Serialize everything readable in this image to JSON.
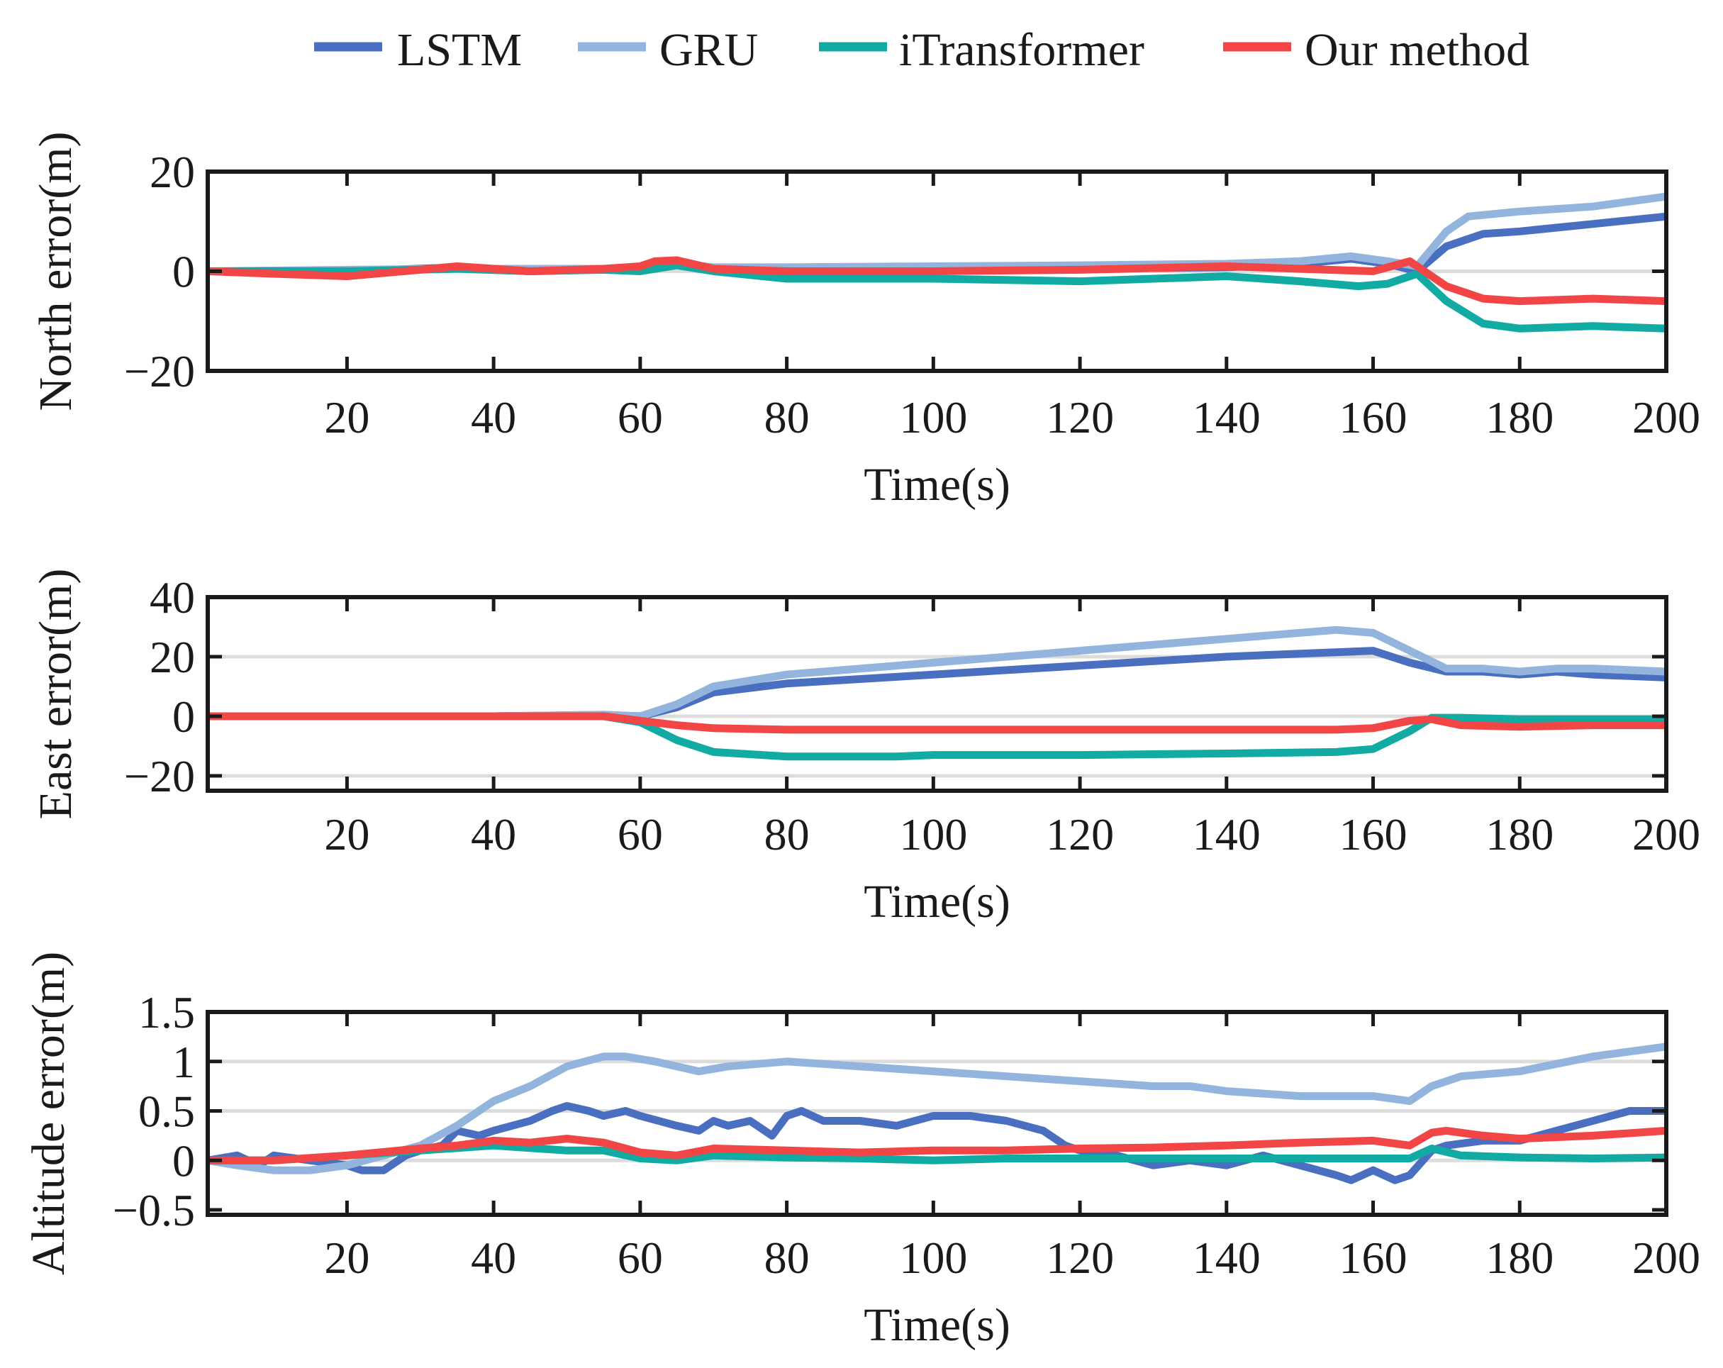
{
  "legend": [
    {
      "name": "LSTM",
      "color": "#4a6fc0"
    },
    {
      "name": "GRU",
      "color": "#93b5dd"
    },
    {
      "name": "iTransformer",
      "color": "#12aba4"
    },
    {
      "name": "Our method",
      "color": "#f24545"
    }
  ],
  "chart_data": [
    {
      "type": "line",
      "title": "",
      "xlabel": "Time(s)",
      "ylabel": "North error(m)",
      "xlim": [
        1,
        200
      ],
      "ylim": [
        -20,
        20
      ],
      "xticks": [
        20,
        40,
        60,
        80,
        100,
        120,
        140,
        160,
        180,
        200
      ],
      "yticks": [
        -20,
        0,
        20
      ],
      "ytick_labels": [
        "−20",
        "0",
        "20"
      ],
      "gridlines": [
        0
      ],
      "series": [
        {
          "name": "LSTM",
          "color": "#4a6fc0",
          "x": [
            1,
            20,
            35,
            45,
            52,
            58,
            64,
            70,
            80,
            100,
            120,
            140,
            150,
            157,
            162,
            166,
            170,
            175,
            180,
            190,
            200
          ],
          "y": [
            0,
            0,
            0.8,
            0,
            0.5,
            0.5,
            1.5,
            0.5,
            0,
            0.3,
            0.5,
            0.8,
            1.5,
            2.5,
            1.5,
            0,
            5,
            7.5,
            8,
            9.5,
            11
          ]
        },
        {
          "name": "GRU",
          "color": "#93b5dd",
          "x": [
            1,
            20,
            35,
            45,
            60,
            65,
            70,
            80,
            100,
            120,
            140,
            150,
            157,
            162,
            166,
            170,
            173,
            180,
            190,
            200
          ],
          "y": [
            0,
            0.3,
            0.5,
            0.5,
            0.5,
            1.5,
            0.8,
            0.8,
            1,
            1.2,
            1.5,
            2,
            3,
            2,
            1,
            8,
            11,
            12,
            13,
            15
          ]
        },
        {
          "name": "iTransformer",
          "color": "#12aba4",
          "x": [
            1,
            20,
            35,
            45,
            55,
            60,
            65,
            70,
            80,
            100,
            120,
            140,
            150,
            158,
            162,
            166,
            170,
            175,
            180,
            190,
            200
          ],
          "y": [
            0,
            0,
            0.5,
            0,
            0.3,
            0,
            1.2,
            0,
            -1.5,
            -1.5,
            -2,
            -1,
            -2,
            -3,
            -2.5,
            -0.5,
            -6,
            -10.5,
            -11.5,
            -11,
            -11.5
          ]
        },
        {
          "name": "Our method",
          "color": "#f24545",
          "x": [
            1,
            10,
            20,
            30,
            35,
            45,
            55,
            60,
            62,
            65,
            70,
            80,
            100,
            120,
            140,
            150,
            160,
            165,
            170,
            175,
            180,
            190,
            200
          ],
          "y": [
            0,
            -0.5,
            -1,
            0.3,
            1,
            0,
            0.5,
            1,
            2,
            2.2,
            0.5,
            0,
            0,
            0.3,
            1,
            0.5,
            0,
            2,
            -3,
            -5.5,
            -6,
            -5.5,
            -6
          ]
        }
      ]
    },
    {
      "type": "line",
      "title": "",
      "xlabel": "Time(s)",
      "ylabel": "East error(m)",
      "xlim": [
        1,
        200
      ],
      "ylim": [
        -25,
        40
      ],
      "xticks": [
        20,
        40,
        60,
        80,
        100,
        120,
        140,
        160,
        180,
        200
      ],
      "yticks": [
        -20,
        0,
        20,
        40
      ],
      "ytick_labels": [
        "−20",
        "0",
        "20",
        "40"
      ],
      "gridlines": [
        -20,
        0,
        20
      ],
      "series": [
        {
          "name": "LSTM",
          "color": "#4a6fc0",
          "x": [
            1,
            20,
            40,
            55,
            60,
            65,
            70,
            80,
            100,
            120,
            140,
            150,
            160,
            165,
            170,
            175,
            180,
            185,
            190,
            200
          ],
          "y": [
            0,
            0,
            0,
            0.5,
            0,
            3,
            8,
            11,
            14,
            17,
            20,
            21,
            22,
            18,
            15,
            15,
            14,
            15,
            14,
            13
          ]
        },
        {
          "name": "GRU",
          "color": "#93b5dd",
          "x": [
            1,
            20,
            40,
            55,
            60,
            65,
            70,
            80,
            100,
            120,
            140,
            150,
            155,
            160,
            165,
            170,
            175,
            180,
            185,
            190,
            200
          ],
          "y": [
            0,
            0,
            0,
            0.5,
            0,
            4,
            10,
            14,
            18,
            22,
            26,
            28,
            29,
            28,
            22,
            16,
            16,
            15,
            16,
            16,
            15
          ]
        },
        {
          "name": "iTransformer",
          "color": "#12aba4",
          "x": [
            1,
            20,
            40,
            55,
            60,
            65,
            70,
            80,
            95,
            100,
            120,
            140,
            155,
            160,
            165,
            168,
            172,
            180,
            190,
            200
          ],
          "y": [
            0,
            0,
            0,
            0,
            -2,
            -8,
            -12,
            -13.5,
            -13.5,
            -13,
            -13,
            -12.5,
            -12,
            -11,
            -5,
            -0.5,
            -0.5,
            -1,
            -1,
            -1
          ]
        },
        {
          "name": "Our method",
          "color": "#f24545",
          "x": [
            1,
            20,
            40,
            55,
            60,
            65,
            70,
            80,
            100,
            120,
            140,
            155,
            160,
            165,
            168,
            172,
            180,
            190,
            200
          ],
          "y": [
            0,
            0,
            0,
            0,
            -1.5,
            -3,
            -4,
            -4.5,
            -4.5,
            -4.5,
            -4.5,
            -4.5,
            -4,
            -1.5,
            -1,
            -3,
            -3.5,
            -3,
            -3
          ]
        }
      ]
    },
    {
      "type": "line",
      "title": "",
      "xlabel": "Time(s)",
      "ylabel": "Altitude error(m)",
      "xlim": [
        1,
        200
      ],
      "ylim": [
        -0.55,
        1.5
      ],
      "xticks": [
        20,
        40,
        60,
        80,
        100,
        120,
        140,
        160,
        180,
        200
      ],
      "yticks": [
        -0.5,
        0,
        0.5,
        1,
        1.5
      ],
      "ytick_labels": [
        "−0.5",
        "0",
        "0.5",
        "1",
        "1.5"
      ],
      "gridlines": [
        0,
        0.5,
        1
      ],
      "series": [
        {
          "name": "LSTM",
          "color": "#4a6fc0",
          "x": [
            1,
            5,
            8,
            10,
            15,
            20,
            22,
            25,
            28,
            30,
            33,
            35,
            38,
            40,
            45,
            48,
            50,
            53,
            55,
            58,
            60,
            65,
            68,
            70,
            72,
            75,
            78,
            80,
            82,
            85,
            90,
            95,
            100,
            105,
            110,
            115,
            118,
            120,
            125,
            130,
            135,
            140,
            145,
            150,
            155,
            157,
            160,
            163,
            165,
            168,
            170,
            175,
            180,
            185,
            190,
            195,
            200
          ],
          "y": [
            0,
            0.05,
            -0.05,
            0.05,
            0,
            -0.05,
            -0.1,
            -0.1,
            0.05,
            0.1,
            0.15,
            0.3,
            0.25,
            0.3,
            0.4,
            0.5,
            0.55,
            0.5,
            0.45,
            0.5,
            0.45,
            0.35,
            0.3,
            0.4,
            0.35,
            0.4,
            0.25,
            0.45,
            0.5,
            0.4,
            0.4,
            0.35,
            0.45,
            0.45,
            0.4,
            0.3,
            0.15,
            0.1,
            0.05,
            -0.05,
            0,
            -0.05,
            0.05,
            -0.05,
            -0.15,
            -0.2,
            -0.1,
            -0.2,
            -0.15,
            0.1,
            0.15,
            0.2,
            0.2,
            0.3,
            0.4,
            0.5,
            0.5
          ]
        },
        {
          "name": "GRU",
          "color": "#93b5dd",
          "x": [
            1,
            5,
            10,
            15,
            20,
            25,
            30,
            35,
            40,
            45,
            50,
            55,
            58,
            62,
            68,
            72,
            80,
            90,
            100,
            110,
            120,
            130,
            135,
            140,
            150,
            160,
            165,
            168,
            172,
            180,
            190,
            200
          ],
          "y": [
            0,
            -0.05,
            -0.1,
            -0.1,
            -0.05,
            0.05,
            0.15,
            0.35,
            0.6,
            0.75,
            0.95,
            1.05,
            1.05,
            1.0,
            0.9,
            0.95,
            1.0,
            0.95,
            0.9,
            0.85,
            0.8,
            0.75,
            0.75,
            0.7,
            0.65,
            0.65,
            0.6,
            0.75,
            0.85,
            0.9,
            1.05,
            1.15
          ]
        },
        {
          "name": "iTransformer",
          "color": "#12aba4",
          "x": [
            1,
            10,
            20,
            30,
            40,
            50,
            55,
            60,
            65,
            70,
            80,
            90,
            100,
            110,
            120,
            130,
            140,
            150,
            160,
            165,
            168,
            172,
            180,
            190,
            200
          ],
          "y": [
            0,
            0,
            0.05,
            0.1,
            0.15,
            0.1,
            0.1,
            0.02,
            0,
            0.05,
            0.03,
            0.02,
            0,
            0.02,
            0.02,
            0.02,
            0.02,
            0.02,
            0.02,
            0.02,
            0.12,
            0.05,
            0.03,
            0.02,
            0.03
          ]
        },
        {
          "name": "Our method",
          "color": "#f24545",
          "x": [
            1,
            10,
            20,
            30,
            35,
            40,
            45,
            50,
            55,
            60,
            65,
            70,
            80,
            90,
            100,
            110,
            120,
            130,
            140,
            150,
            160,
            165,
            168,
            170,
            175,
            180,
            190,
            200
          ],
          "y": [
            0,
            0,
            0.05,
            0.12,
            0.15,
            0.2,
            0.18,
            0.22,
            0.18,
            0.08,
            0.05,
            0.12,
            0.1,
            0.08,
            0.1,
            0.1,
            0.12,
            0.13,
            0.15,
            0.18,
            0.2,
            0.15,
            0.28,
            0.3,
            0.25,
            0.22,
            0.25,
            0.3
          ]
        }
      ]
    }
  ]
}
